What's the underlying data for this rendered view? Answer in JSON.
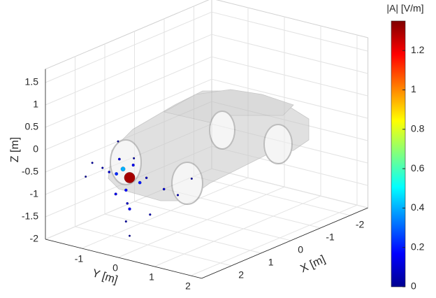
{
  "chart_data": {
    "type": "scatter3d",
    "xlabel": "X [m]",
    "ylabel": "Y [m]",
    "zlabel": "Z [m]",
    "xlim": [
      -2.6,
      3
    ],
    "ylim": [
      -2,
      2.3
    ],
    "zlim": [
      -2,
      1.8
    ],
    "xticks": [
      -2,
      -1,
      0,
      1,
      2
    ],
    "yticks": [
      -1,
      0,
      1,
      2
    ],
    "zticks": [
      -2,
      -1.5,
      -1,
      -0.5,
      0,
      0.5,
      1,
      1.5
    ],
    "grid": true,
    "x": [
      2.1,
      2.0,
      2.2,
      1.9,
      2.3,
      2.0,
      1.8,
      2.1,
      2.4,
      2.0,
      1.7,
      2.2,
      2.0,
      1.9,
      2.1,
      1.6,
      2.5,
      1.5,
      2.0,
      1.8,
      2.2,
      2.1,
      2.0
    ],
    "y": [
      -0.7,
      -0.4,
      -0.9,
      -0.3,
      -1.0,
      -0.6,
      -0.2,
      -0.8,
      -1.2,
      -0.5,
      0.2,
      -0.4,
      -0.6,
      -0.9,
      -0.3,
      0.5,
      -1.3,
      0.8,
      -0.5,
      -0.1,
      -0.7,
      -0.6,
      -0.5
    ],
    "z": [
      -0.2,
      -0.3,
      -0.5,
      -0.7,
      -0.4,
      -0.9,
      -0.6,
      -1.0,
      -0.3,
      -1.3,
      -0.8,
      -1.1,
      -1.6,
      0.1,
      -0.1,
      -0.9,
      -0.6,
      -0.5,
      -1.9,
      -1.4,
      -0.5,
      -0.4,
      -0.6
    ],
    "values": [
      0.12,
      0.15,
      0.1,
      0.2,
      0.05,
      0.18,
      0.08,
      0.14,
      0.04,
      0.16,
      0.1,
      0.09,
      0.05,
      0.03,
      0.04,
      0.06,
      0.03,
      0.04,
      0.03,
      0.06,
      0.22,
      0.4,
      1.3
    ],
    "colorbar": {
      "label": "|A| [V/m]",
      "lim": [
        0,
        1.35
      ],
      "ticks": [
        0,
        0.2,
        0.4,
        0.6,
        0.8,
        1,
        1.2
      ]
    }
  }
}
